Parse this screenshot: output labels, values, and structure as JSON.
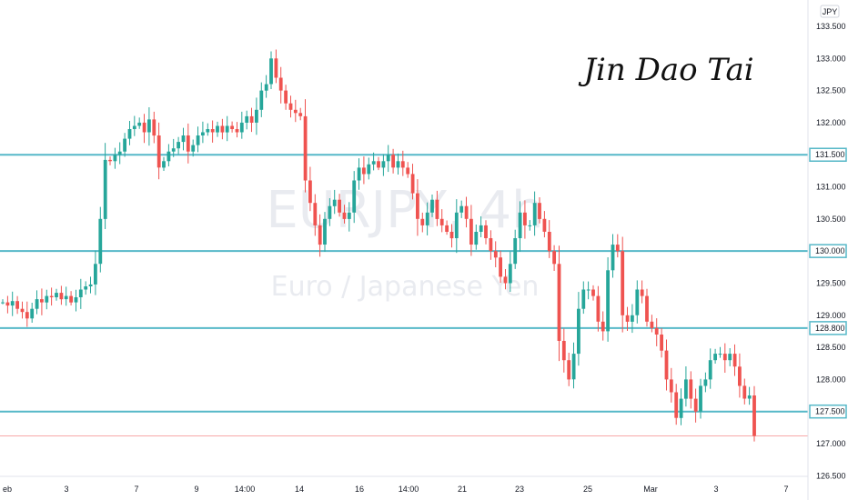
{
  "watermark": {
    "symbol": "EURJPY, 4h",
    "name": "Euro / Japanese Yen"
  },
  "signature": "Jin Dao Tai",
  "currency_badge": "JPY",
  "colors": {
    "up": "#26a69a",
    "down": "#ef5350",
    "level_line": "#56b8c8",
    "last_price_line": "#f7a8a8"
  },
  "chart_data": {
    "type": "candlestick",
    "symbol": "EURJPY",
    "timeframe": "4h",
    "ylim": [
      126.5,
      133.6
    ],
    "y_ticks": [
      "133.500",
      "133.000",
      "132.500",
      "132.000",
      "131.500",
      "131.000",
      "130.500",
      "130.000",
      "129.500",
      "129.000",
      "128.500",
      "128.000",
      "127.500",
      "127.000",
      "126.500"
    ],
    "x_tick_labels": [
      "eb",
      "3",
      "7",
      "9",
      "14:00",
      "14",
      "16",
      "14:00",
      "21",
      "23",
      "25",
      "Mar",
      "3",
      "7"
    ],
    "horizontal_levels": [
      {
        "label": "131.500",
        "value": 131.5
      },
      {
        "label": "130.000",
        "value": 130.0
      },
      {
        "label": "128.800",
        "value": 128.8
      },
      {
        "label": "127.500",
        "value": 127.5
      }
    ],
    "last_price": 127.12,
    "closes": [
      129.2,
      129.15,
      129.22,
      129.1,
      129.05,
      128.95,
      129.1,
      129.25,
      129.2,
      129.3,
      129.28,
      129.35,
      129.25,
      129.3,
      129.2,
      129.28,
      129.4,
      129.45,
      129.48,
      129.8,
      130.5,
      131.42,
      131.4,
      131.5,
      131.55,
      131.75,
      131.9,
      131.95,
      132.0,
      131.85,
      132.05,
      131.8,
      131.3,
      131.4,
      131.55,
      131.6,
      131.7,
      131.8,
      131.55,
      131.65,
      131.8,
      131.85,
      131.9,
      131.85,
      131.95,
      131.85,
      131.95,
      131.9,
      131.85,
      132.0,
      132.1,
      132.0,
      132.2,
      132.5,
      132.6,
      133.0,
      132.7,
      132.5,
      132.3,
      132.2,
      132.15,
      132.1,
      131.1,
      130.75,
      130.4,
      130.1,
      130.5,
      130.7,
      130.8,
      130.6,
      130.5,
      130.6,
      131.1,
      131.3,
      131.2,
      131.35,
      131.4,
      131.3,
      131.4,
      131.5,
      131.3,
      131.4,
      131.3,
      131.2,
      130.9,
      130.5,
      130.4,
      130.6,
      130.8,
      130.5,
      130.4,
      130.3,
      130.2,
      130.6,
      130.7,
      130.5,
      130.1,
      130.3,
      130.4,
      130.2,
      130.0,
      129.9,
      129.6,
      129.5,
      129.8,
      130.2,
      130.6,
      130.4,
      130.4,
      130.75,
      130.5,
      130.3,
      130.0,
      129.8,
      128.6,
      128.3,
      128.0,
      128.4,
      129.1,
      129.4,
      129.4,
      129.3,
      128.9,
      128.75,
      129.7,
      130.1,
      130.0,
      129.0,
      128.9,
      129.0,
      129.4,
      129.3,
      128.9,
      128.8,
      128.7,
      128.45,
      128.0,
      127.8,
      127.4,
      127.7,
      128.0,
      127.7,
      127.5,
      127.9,
      128.0,
      128.3,
      128.4,
      128.4,
      128.3,
      128.4,
      128.2,
      127.9,
      127.7,
      127.75,
      127.12
    ]
  }
}
